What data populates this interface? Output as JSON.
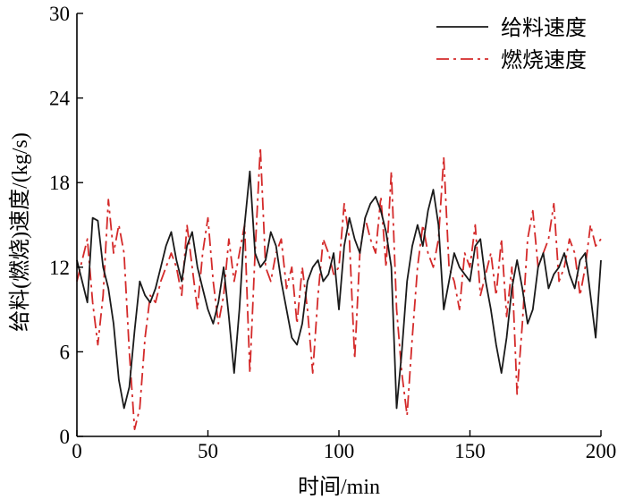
{
  "chart_data": {
    "type": "line",
    "xlabel": "时间/min",
    "ylabel": "给料(燃烧)速度/(kg/s)",
    "xlim": [
      0,
      200
    ],
    "ylim": [
      0,
      30
    ],
    "xticks": [
      0,
      50,
      100,
      150,
      200
    ],
    "yticks": [
      0,
      6,
      12,
      18,
      24,
      30
    ],
    "grid": false,
    "legend_position": "top-right",
    "series": [
      {
        "name": "给料速度",
        "color": "#1a1a1a",
        "style": "solid",
        "x": [
          0,
          2,
          4,
          6,
          8,
          10,
          12,
          14,
          16,
          18,
          20,
          22,
          24,
          26,
          28,
          30,
          32,
          34,
          36,
          38,
          40,
          42,
          44,
          46,
          48,
          50,
          52,
          54,
          56,
          58,
          60,
          62,
          64,
          66,
          68,
          70,
          72,
          74,
          76,
          78,
          80,
          82,
          84,
          86,
          88,
          90,
          92,
          94,
          96,
          98,
          100,
          102,
          104,
          106,
          108,
          110,
          112,
          114,
          116,
          118,
          120,
          122,
          124,
          126,
          128,
          130,
          132,
          134,
          136,
          138,
          140,
          142,
          144,
          146,
          148,
          150,
          152,
          154,
          156,
          158,
          160,
          162,
          164,
          166,
          168,
          170,
          172,
          174,
          176,
          178,
          180,
          182,
          184,
          186,
          188,
          190,
          192,
          194,
          196,
          198,
          200
        ],
        "y": [
          12.5,
          11,
          9.5,
          15.5,
          15.3,
          12,
          10.5,
          8,
          4,
          2,
          3.5,
          7.5,
          11,
          10,
          9.5,
          10.5,
          12,
          13.5,
          14.5,
          12.5,
          11,
          13.5,
          14.5,
          12,
          10.5,
          9,
          8,
          9.5,
          12,
          8.5,
          4.5,
          9,
          15,
          18.8,
          13,
          12,
          12.5,
          14.5,
          13.5,
          11,
          9,
          7,
          6.5,
          8,
          11,
          12,
          12.5,
          11,
          11.5,
          13,
          9,
          13.5,
          15.5,
          14,
          13,
          15.5,
          16.5,
          17,
          16,
          14.5,
          12,
          2,
          6,
          11,
          13.5,
          15,
          13.5,
          16,
          17.5,
          15,
          9,
          11,
          13,
          12,
          11.5,
          11,
          13.5,
          14,
          11,
          9,
          6.5,
          4.5,
          7,
          10.5,
          12.5,
          10.5,
          8,
          9,
          12,
          13,
          10.5,
          11.5,
          12,
          13,
          11.5,
          10.5,
          12.5,
          13,
          10,
          7,
          12.5
        ]
      },
      {
        "name": "燃烧速度",
        "color": "#d42a2a",
        "style": "dashdot",
        "x": [
          0,
          2,
          4,
          6,
          8,
          10,
          12,
          14,
          16,
          18,
          20,
          22,
          24,
          26,
          28,
          30,
          32,
          34,
          36,
          38,
          40,
          42,
          44,
          46,
          48,
          50,
          52,
          54,
          56,
          58,
          60,
          62,
          64,
          66,
          68,
          70,
          72,
          74,
          76,
          78,
          80,
          82,
          84,
          86,
          88,
          90,
          92,
          94,
          96,
          98,
          100,
          102,
          104,
          106,
          108,
          110,
          112,
          114,
          116,
          118,
          120,
          122,
          124,
          126,
          128,
          130,
          132,
          134,
          136,
          138,
          140,
          142,
          144,
          146,
          148,
          150,
          152,
          154,
          156,
          158,
          160,
          162,
          164,
          166,
          168,
          170,
          172,
          174,
          176,
          178,
          180,
          182,
          184,
          186,
          188,
          190,
          192,
          194,
          196,
          198,
          200
        ],
        "y": [
          11,
          12.5,
          14,
          9.5,
          6.5,
          10,
          16.8,
          13,
          15,
          13,
          6,
          0.5,
          2,
          7,
          10,
          9.5,
          11,
          12,
          13,
          12,
          10,
          15,
          12,
          9,
          13,
          15.5,
          11,
          8,
          10,
          14,
          11,
          13,
          15,
          4.5,
          13,
          20.5,
          12,
          11,
          13,
          14,
          10.5,
          12,
          8,
          12,
          9,
          4.5,
          10,
          14,
          13,
          11.5,
          12,
          16.5,
          14,
          5.5,
          13,
          15.5,
          14,
          13,
          17,
          12,
          18.8,
          9,
          4.5,
          1.5,
          7,
          12,
          15,
          13,
          12,
          14,
          19.8,
          12,
          11,
          9,
          13,
          12,
          15,
          10,
          11.5,
          13,
          10,
          14,
          8.5,
          12,
          3,
          8,
          14,
          16,
          12,
          13,
          14,
          16.5,
          11,
          12,
          14,
          13,
          10,
          12,
          15,
          13.5,
          14
        ]
      }
    ]
  }
}
